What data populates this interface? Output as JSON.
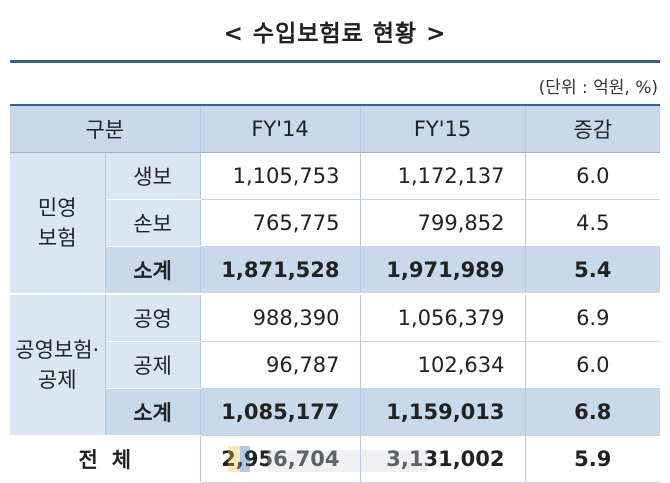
{
  "title": "< 수입보험료 현황 >",
  "unit_note": "(단위 : 억원, %)",
  "headers": {
    "category": "구분",
    "fy14": "FY'14",
    "fy15": "FY'15",
    "change": "증감"
  },
  "groups": [
    {
      "name_line1": "민영",
      "name_line2": "보험",
      "rows": [
        {
          "label": "생보",
          "fy14": "1,105,753",
          "fy15": "1,172,137",
          "change": "6.0"
        },
        {
          "label": "손보",
          "fy14": "765,775",
          "fy15": "799,852",
          "change": "4.5"
        },
        {
          "label": "소계",
          "fy14": "1,871,528",
          "fy15": "1,971,989",
          "change": "5.4"
        }
      ]
    },
    {
      "name_line1": "공영보험·",
      "name_line2": "공제",
      "rows": [
        {
          "label": "공영",
          "fy14": "988,390",
          "fy15": "1,056,379",
          "change": "6.9"
        },
        {
          "label": "공제",
          "fy14": "96,787",
          "fy15": "102,634",
          "change": "6.0"
        },
        {
          "label": "소계",
          "fy14": "1,085,177",
          "fy15": "1,159,013",
          "change": "6.8"
        }
      ]
    }
  ],
  "total": {
    "label": "전체",
    "fy14": "2,956,704",
    "fy15": "3,131,002",
    "change": "5.9"
  },
  "colors": {
    "header_bg": "#c9d9ec",
    "label_bg": "#dbe6f3",
    "rule": "#3c5f93"
  }
}
